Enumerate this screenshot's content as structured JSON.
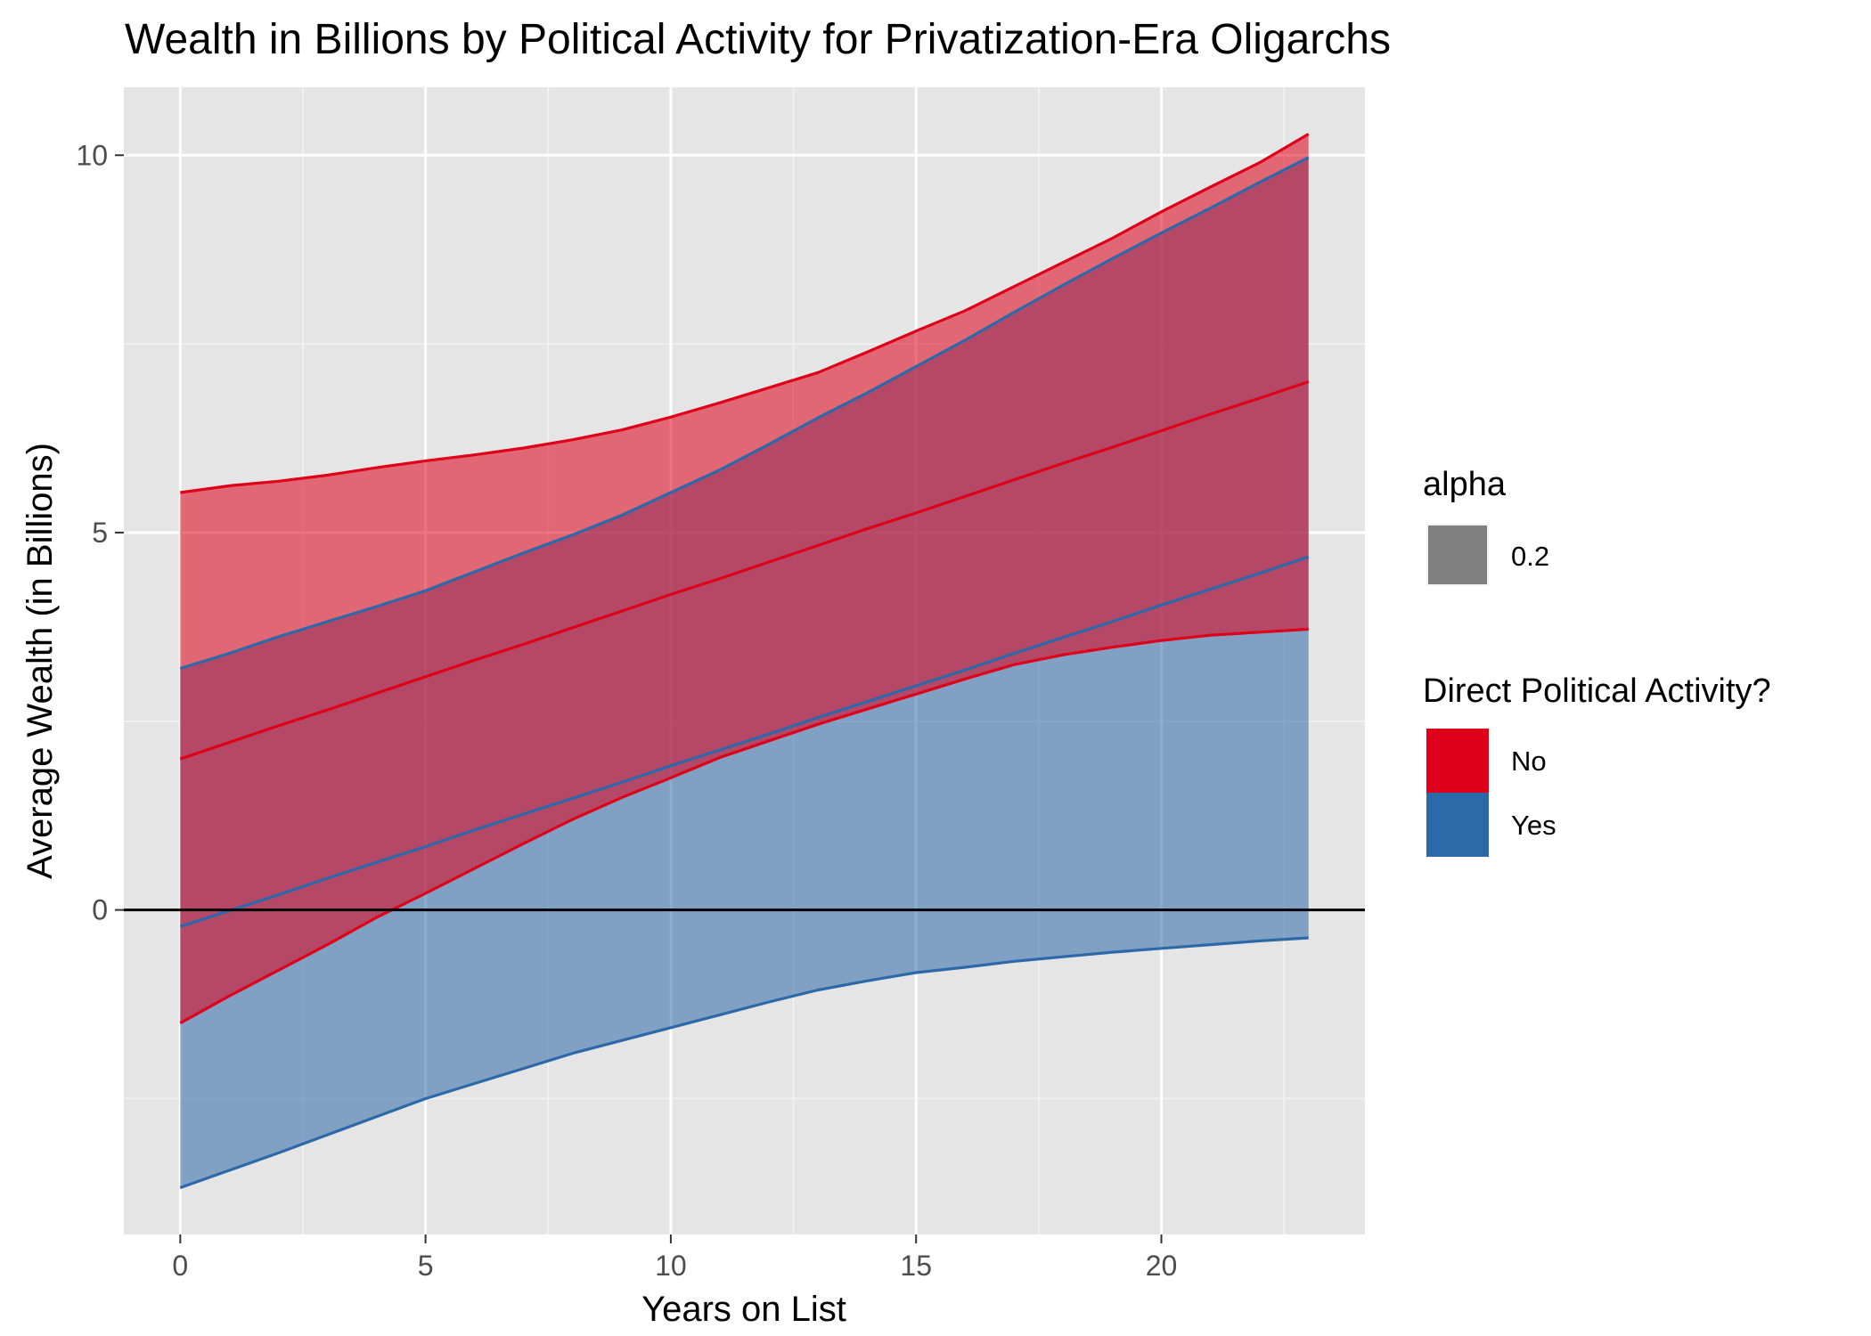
{
  "chart_data": {
    "type": "area",
    "title": "Wealth in Billions by Political Activity for Privatization-Era Oligarchs",
    "xlabel": "Years on List",
    "ylabel": "Average Wealth (in Billions)",
    "xlim": [
      -1.15,
      24.15
    ],
    "ylim": [
      -4.3,
      10.9
    ],
    "x_ticks": [
      0,
      5,
      10,
      15,
      20
    ],
    "y_ticks": [
      0,
      5,
      10
    ],
    "grid": true,
    "hline": 0,
    "legend_position": "right",
    "legends": [
      {
        "title": "alpha",
        "items": [
          {
            "label": "0.2",
            "color": "#808080"
          }
        ]
      },
      {
        "title": "Direct Political Activity?",
        "items": [
          {
            "label": "No",
            "color": "#de0019"
          },
          {
            "label": "Yes",
            "color": "#2d69a9"
          }
        ]
      }
    ],
    "series": [
      {
        "name": "No",
        "color": "#de0019",
        "x": [
          0,
          1,
          2,
          3,
          4,
          5,
          6,
          7,
          8,
          9,
          10,
          11,
          12,
          13,
          14,
          15,
          16,
          17,
          18,
          19,
          20,
          21,
          22,
          23
        ],
        "mean": [
          2.0,
          2.22,
          2.44,
          2.65,
          2.87,
          3.09,
          3.31,
          3.52,
          3.74,
          3.96,
          4.18,
          4.39,
          4.61,
          4.83,
          5.05,
          5.26,
          5.48,
          5.7,
          5.92,
          6.13,
          6.35,
          6.57,
          6.78,
          7.0
        ],
        "upper": [
          5.53,
          5.62,
          5.68,
          5.76,
          5.86,
          5.95,
          6.03,
          6.12,
          6.23,
          6.36,
          6.53,
          6.72,
          6.92,
          7.12,
          7.39,
          7.67,
          7.94,
          8.26,
          8.58,
          8.9,
          9.25,
          9.58,
          9.9,
          10.28
        ],
        "lower": [
          -1.5,
          -1.14,
          -0.8,
          -0.46,
          -0.1,
          0.22,
          0.55,
          0.88,
          1.2,
          1.49,
          1.75,
          2.02,
          2.24,
          2.46,
          2.66,
          2.86,
          3.06,
          3.25,
          3.38,
          3.48,
          3.57,
          3.64,
          3.68,
          3.72
        ]
      },
      {
        "name": "Yes",
        "color": "#2d69a9",
        "x": [
          0,
          1,
          2,
          3,
          4,
          5,
          6,
          7,
          8,
          9,
          10,
          11,
          12,
          13,
          14,
          15,
          16,
          17,
          18,
          19,
          20,
          21,
          22,
          23
        ],
        "mean": [
          -0.22,
          -0.01,
          0.2,
          0.42,
          0.63,
          0.84,
          1.06,
          1.27,
          1.48,
          1.69,
          1.91,
          2.12,
          2.33,
          2.55,
          2.76,
          2.97,
          3.18,
          3.4,
          3.61,
          3.82,
          4.04,
          4.25,
          4.46,
          4.68
        ],
        "upper": [
          3.2,
          3.4,
          3.62,
          3.82,
          4.02,
          4.23,
          4.48,
          4.73,
          4.97,
          5.23,
          5.53,
          5.83,
          6.17,
          6.52,
          6.85,
          7.2,
          7.55,
          7.92,
          8.28,
          8.63,
          8.97,
          9.3,
          9.64,
          9.97
        ],
        "lower": [
          -3.68,
          -3.45,
          -3.22,
          -2.98,
          -2.74,
          -2.5,
          -2.3,
          -2.1,
          -1.9,
          -1.73,
          -1.56,
          -1.39,
          -1.22,
          -1.06,
          -0.94,
          -0.83,
          -0.76,
          -0.68,
          -0.62,
          -0.56,
          -0.51,
          -0.46,
          -0.41,
          -0.37
        ]
      }
    ]
  }
}
